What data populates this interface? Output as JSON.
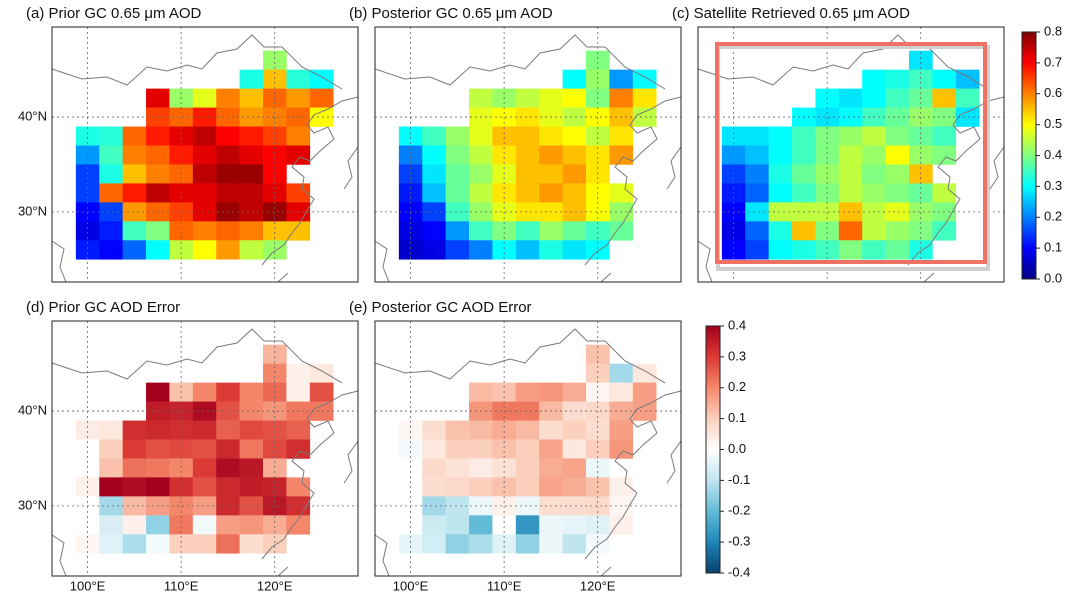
{
  "chart_data": [
    {
      "type": "heatmap",
      "title": "(a) Prior GC 0.65 μm AOD",
      "colormap": "jet",
      "x": [
        100,
        102.5,
        105,
        107.5,
        110,
        112.5,
        115,
        117.5,
        120,
        122.5,
        125
      ],
      "y": [
        46,
        44,
        42,
        40,
        38,
        36,
        34,
        32,
        30,
        28,
        26
      ],
      "values": [
        [
          null,
          null,
          null,
          null,
          null,
          null,
          null,
          null,
          0.42,
          null,
          null
        ],
        [
          null,
          null,
          null,
          null,
          null,
          null,
          null,
          0.32,
          0.55,
          0.33,
          0.3
        ],
        [
          null,
          null,
          null,
          0.72,
          0.42,
          0.48,
          0.6,
          0.55,
          0.62,
          0.58,
          0.62
        ],
        [
          null,
          null,
          null,
          0.65,
          0.62,
          0.68,
          0.62,
          0.58,
          0.6,
          0.62,
          0.5
        ],
        [
          0.32,
          0.33,
          0.62,
          0.68,
          0.72,
          0.75,
          0.7,
          0.68,
          0.65,
          0.6,
          null
        ],
        [
          0.22,
          0.35,
          0.6,
          0.62,
          0.68,
          0.72,
          0.75,
          0.72,
          0.7,
          0.72,
          null
        ],
        [
          0.15,
          0.32,
          0.55,
          0.6,
          0.62,
          0.75,
          0.78,
          0.78,
          0.7,
          null,
          null
        ],
        [
          0.15,
          0.62,
          0.68,
          0.75,
          0.72,
          0.72,
          0.75,
          0.75,
          0.72,
          0.65,
          null
        ],
        [
          0.1,
          0.15,
          0.58,
          0.62,
          0.65,
          0.72,
          0.78,
          0.75,
          0.78,
          0.72,
          null
        ],
        [
          0.08,
          0.12,
          0.35,
          0.4,
          0.62,
          0.6,
          0.62,
          0.6,
          0.55,
          0.55,
          null
        ],
        [
          0.12,
          0.1,
          0.18,
          0.3,
          0.45,
          0.5,
          0.58,
          0.45,
          0.42,
          null,
          null
        ]
      ],
      "xlim": [
        96.2,
        128.9
      ],
      "ylim": [
        22.6,
        49.5
      ],
      "xticks": [
        100,
        110,
        120
      ],
      "yticks": [
        {
          "value": 30,
          "label": "30°N"
        },
        {
          "value": 40,
          "label": "40°N"
        }
      ]
    },
    {
      "type": "heatmap",
      "title": "(b) Posterior GC 0.65 μm AOD",
      "colormap": "jet",
      "x": [
        100,
        102.5,
        105,
        107.5,
        110,
        112.5,
        115,
        117.5,
        120,
        122.5,
        125
      ],
      "y": [
        46,
        44,
        42,
        40,
        38,
        36,
        34,
        32,
        30,
        28,
        26
      ],
      "values": [
        [
          null,
          null,
          null,
          null,
          null,
          null,
          null,
          null,
          0.4,
          null,
          null
        ],
        [
          null,
          null,
          null,
          null,
          null,
          null,
          null,
          0.3,
          0.42,
          0.22,
          0.3
        ],
        [
          null,
          null,
          null,
          0.45,
          0.42,
          0.45,
          0.48,
          0.5,
          0.4,
          0.6,
          0.52
        ],
        [
          null,
          null,
          null,
          0.48,
          0.5,
          0.52,
          0.48,
          0.45,
          0.5,
          0.55,
          0.45
        ],
        [
          0.3,
          0.35,
          0.42,
          0.48,
          0.55,
          0.55,
          0.52,
          0.5,
          0.45,
          0.52,
          null
        ],
        [
          0.2,
          0.3,
          0.4,
          0.45,
          0.52,
          0.55,
          0.58,
          0.55,
          0.52,
          0.58,
          null
        ],
        [
          0.15,
          0.28,
          0.38,
          0.42,
          0.48,
          0.55,
          0.55,
          0.58,
          0.52,
          null,
          null
        ],
        [
          0.12,
          0.25,
          0.38,
          0.45,
          0.52,
          0.55,
          0.58,
          0.55,
          0.5,
          0.48,
          null
        ],
        [
          0.1,
          0.15,
          0.35,
          0.42,
          0.48,
          0.52,
          0.52,
          0.55,
          0.5,
          0.42,
          null
        ],
        [
          0.08,
          0.1,
          0.22,
          0.35,
          0.4,
          0.35,
          0.42,
          0.38,
          0.35,
          0.38,
          null
        ],
        [
          0.06,
          0.08,
          0.15,
          0.2,
          0.3,
          0.25,
          0.32,
          0.28,
          0.3,
          null,
          null
        ]
      ],
      "xlim": [
        96.2,
        128.9
      ],
      "ylim": [
        22.6,
        49.5
      ],
      "xticks": [
        100,
        110,
        120
      ],
      "yticks": [
        30,
        40
      ]
    },
    {
      "type": "heatmap",
      "title": "(c) Satellite Retrieved 0.65 μm AOD",
      "colormap": "jet",
      "x": [
        100,
        102.5,
        105,
        107.5,
        110,
        112.5,
        115,
        117.5,
        120,
        122.5,
        125
      ],
      "y": [
        46,
        44,
        42,
        40,
        38,
        36,
        34,
        32,
        30,
        28,
        26
      ],
      "values": [
        [
          null,
          null,
          null,
          null,
          null,
          null,
          null,
          null,
          0.28,
          null,
          null
        ],
        [
          null,
          null,
          null,
          null,
          null,
          null,
          0.3,
          0.32,
          0.35,
          0.3,
          0.25
        ],
        [
          null,
          null,
          null,
          null,
          0.3,
          0.28,
          0.3,
          0.35,
          0.38,
          0.55,
          0.35
        ],
        [
          null,
          null,
          null,
          0.3,
          0.28,
          0.3,
          0.35,
          0.38,
          0.42,
          0.4,
          0.28
        ],
        [
          0.28,
          0.28,
          0.3,
          0.35,
          0.4,
          0.42,
          0.45,
          0.4,
          0.38,
          0.35,
          null
        ],
        [
          0.22,
          0.25,
          0.3,
          0.35,
          0.4,
          0.45,
          0.42,
          0.5,
          0.42,
          0.4,
          null
        ],
        [
          0.15,
          0.2,
          0.32,
          0.38,
          0.42,
          0.45,
          0.4,
          0.42,
          0.55,
          null,
          null
        ],
        [
          0.12,
          0.18,
          0.3,
          0.35,
          0.4,
          0.45,
          0.42,
          0.4,
          0.38,
          0.45,
          null
        ],
        [
          0.1,
          0.28,
          0.45,
          0.45,
          0.45,
          0.55,
          0.45,
          0.48,
          0.42,
          0.4,
          null
        ],
        [
          0.08,
          0.18,
          0.32,
          0.55,
          0.4,
          0.62,
          0.45,
          0.42,
          0.4,
          0.35,
          null
        ],
        [
          0.1,
          0.15,
          0.3,
          0.32,
          0.35,
          0.4,
          0.35,
          0.38,
          0.32,
          null,
          null
        ]
      ],
      "xlim": [
        96.2,
        128.9
      ],
      "ylim": [
        22.6,
        49.5
      ],
      "xticks": [
        100,
        110,
        120
      ],
      "yticks": [
        30,
        40
      ],
      "colorbar": {
        "lim": [
          0,
          0.8
        ],
        "ticks": [
          {
            "value": 0,
            "label": "0.0"
          },
          0.1,
          0.2,
          0.3,
          0.4,
          0.5,
          0.6,
          0.7,
          0.8
        ]
      }
    },
    {
      "type": "heatmap",
      "title": "(d) Prior GC AOD Error",
      "colormap": "diverging",
      "x": [
        100,
        102.5,
        105,
        107.5,
        110,
        112.5,
        115,
        117.5,
        120,
        122.5,
        125
      ],
      "y": [
        46,
        44,
        42,
        40,
        38,
        36,
        34,
        32,
        30,
        28,
        26
      ],
      "values": [
        [
          null,
          null,
          null,
          null,
          null,
          null,
          null,
          null,
          0.14,
          null,
          null
        ],
        [
          null,
          null,
          null,
          null,
          null,
          null,
          null,
          0.0,
          0.2,
          0.03,
          0.05
        ],
        [
          null,
          null,
          null,
          0.4,
          0.12,
          0.2,
          0.3,
          0.2,
          0.24,
          0.03,
          0.27
        ],
        [
          null,
          null,
          null,
          0.35,
          0.34,
          0.38,
          0.27,
          0.2,
          0.18,
          0.22,
          0.22
        ],
        [
          0.04,
          0.05,
          0.32,
          0.33,
          0.32,
          0.33,
          0.25,
          0.28,
          0.27,
          0.25,
          null
        ],
        [
          0.0,
          0.1,
          0.3,
          0.27,
          0.28,
          0.27,
          0.33,
          0.22,
          0.28,
          0.32,
          null
        ],
        [
          0.0,
          0.12,
          0.23,
          0.22,
          0.2,
          0.3,
          0.38,
          0.36,
          0.15,
          null,
          null
        ],
        [
          0.03,
          0.44,
          0.38,
          0.4,
          0.32,
          0.27,
          0.33,
          0.35,
          0.34,
          0.2,
          null
        ],
        [
          0.0,
          -0.13,
          0.13,
          0.17,
          0.2,
          0.17,
          0.33,
          0.27,
          0.36,
          0.32,
          null
        ],
        [
          0.0,
          -0.06,
          0.03,
          -0.15,
          0.22,
          -0.02,
          0.17,
          0.18,
          0.15,
          0.2,
          null
        ],
        [
          0.02,
          -0.05,
          -0.12,
          -0.02,
          0.1,
          0.1,
          0.23,
          0.07,
          0.1,
          null,
          null
        ]
      ],
      "xlim": [
        96.2,
        128.9
      ],
      "ylim": [
        22.6,
        49.5
      ],
      "xticks": [
        {
          "value": 100,
          "label": "100°E"
        },
        {
          "value": 110,
          "label": "110°E"
        },
        {
          "value": 120,
          "label": "120°E"
        }
      ],
      "yticks": [
        {
          "value": 30,
          "label": "30°N"
        },
        {
          "value": 40,
          "label": "40°N"
        }
      ]
    },
    {
      "type": "heatmap",
      "title": "(e) Posterior GC AOD Error",
      "colormap": "diverging",
      "x": [
        100,
        102.5,
        105,
        107.5,
        110,
        112.5,
        115,
        117.5,
        120,
        122.5,
        125
      ],
      "y": [
        46,
        44,
        42,
        40,
        38,
        36,
        34,
        32,
        30,
        28,
        26
      ],
      "values": [
        [
          null,
          null,
          null,
          null,
          null,
          null,
          null,
          null,
          0.12,
          null,
          null
        ],
        [
          null,
          null,
          null,
          null,
          null,
          null,
          null,
          0.0,
          0.1,
          -0.13,
          0.05
        ],
        [
          null,
          null,
          null,
          0.13,
          0.12,
          0.17,
          0.18,
          0.15,
          0.02,
          0.05,
          0.17
        ],
        [
          null,
          null,
          null,
          0.18,
          0.22,
          0.22,
          0.13,
          0.07,
          0.08,
          0.15,
          0.17
        ],
        [
          0.02,
          0.07,
          0.12,
          0.13,
          0.15,
          0.13,
          0.07,
          0.1,
          0.07,
          0.17,
          null
        ],
        [
          -0.02,
          0.05,
          0.1,
          0.1,
          0.12,
          0.1,
          0.16,
          0.05,
          0.1,
          0.18,
          null
        ],
        [
          0.0,
          0.08,
          0.06,
          0.04,
          0.06,
          0.1,
          0.15,
          0.16,
          -0.03,
          null,
          null
        ],
        [
          0.0,
          0.07,
          0.08,
          0.1,
          0.12,
          0.1,
          0.16,
          0.15,
          0.12,
          0.03,
          null
        ],
        [
          0.0,
          -0.13,
          -0.1,
          -0.03,
          0.03,
          -0.03,
          0.07,
          0.07,
          0.08,
          0.02,
          null
        ],
        [
          0.0,
          -0.08,
          -0.1,
          -0.2,
          0.0,
          -0.27,
          -0.03,
          -0.04,
          -0.05,
          0.03,
          null
        ],
        [
          -0.04,
          -0.07,
          -0.15,
          -0.12,
          -0.05,
          -0.15,
          -0.03,
          -0.1,
          -0.02,
          null,
          null
        ]
      ],
      "xlim": [
        96.2,
        128.9
      ],
      "ylim": [
        22.6,
        49.5
      ],
      "xticks": [
        {
          "value": 100,
          "label": "100°E"
        },
        {
          "value": 110,
          "label": "110°E"
        },
        {
          "value": 120,
          "label": "120°E"
        }
      ],
      "yticks": [
        30,
        40
      ],
      "colorbar": {
        "lim": [
          -0.4,
          0.4
        ],
        "ticks": [
          -0.4,
          -0.3,
          -0.2,
          -0.1,
          {
            "value": 0,
            "label": "0.0"
          },
          0.1,
          0.2,
          0.3,
          0.4
        ]
      }
    }
  ]
}
